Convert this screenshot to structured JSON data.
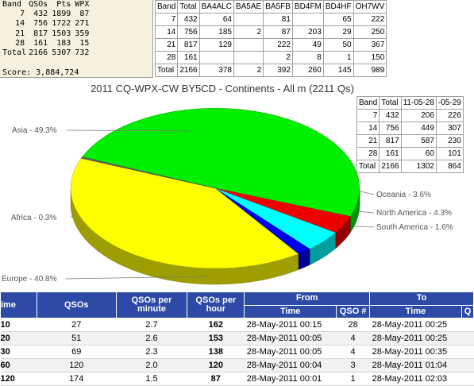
{
  "score_block": {
    "headers": [
      "Band",
      "QSOs",
      "Pts",
      "WPX"
    ],
    "rows": [
      [
        "7",
        "432",
        "1899",
        "87"
      ],
      [
        "14",
        "756",
        "1722",
        "271"
      ],
      [
        "21",
        "817",
        "1503",
        "359"
      ],
      [
        "28",
        "161",
        "183",
        "15"
      ],
      [
        "Total",
        "2166",
        "5307",
        "732"
      ]
    ],
    "score_label": "Score:",
    "score_value": "3,884,724"
  },
  "operators_table": {
    "headers": [
      "Band",
      "Total",
      "BA4ALC",
      "BA5AE",
      "BA5FB",
      "BD4FM",
      "BD4HF",
      "OH7WV"
    ],
    "rows": [
      [
        "7",
        "432",
        "64",
        "",
        "81",
        "",
        "65",
        "222"
      ],
      [
        "14",
        "756",
        "185",
        "2",
        "87",
        "203",
        "29",
        "250"
      ],
      [
        "21",
        "817",
        "129",
        "",
        "222",
        "49",
        "50",
        "367"
      ],
      [
        "28",
        "161",
        "",
        "",
        "2",
        "8",
        "1",
        "150"
      ],
      [
        "Total",
        "2166",
        "378",
        "2",
        "392",
        "260",
        "145",
        "989"
      ]
    ]
  },
  "chart_title": "2011 CQ-WPX-CW BY5CD - Continents - All m (2211 Qs)",
  "chart_data": {
    "type": "pie",
    "title": "2011 CQ-WPX-CW BY5CD - Continents - All m (2211 Qs)",
    "slices": [
      {
        "label": "Asia - 49.3%",
        "value": 49.3,
        "color": "#00ee00"
      },
      {
        "label": "Oceania - 3.6%",
        "value": 3.6,
        "color": "#ee0000"
      },
      {
        "label": "North America - 4.3%",
        "value": 4.3,
        "color": "#00ffff"
      },
      {
        "label": "South America - 1.6%",
        "value": 1.6,
        "color": "#0000ee"
      },
      {
        "label": "Europe - 40.8%",
        "value": 40.8,
        "color": "#ffff00"
      },
      {
        "label": "Africa - 0.3%",
        "value": 0.3,
        "color": "#666666"
      }
    ]
  },
  "continents_table": {
    "headers": [
      "Band",
      "Total",
      "11-05-28",
      "-05-29"
    ],
    "rows": [
      [
        "7",
        "432",
        "206",
        "226"
      ],
      [
        "14",
        "756",
        "449",
        "307"
      ],
      [
        "21",
        "817",
        "587",
        "230"
      ],
      [
        "28",
        "161",
        "60",
        "101"
      ],
      [
        "Total",
        "2166",
        "1302",
        "864"
      ]
    ]
  },
  "rate_table": {
    "headers": {
      "time": "ime",
      "qsos": "QSOs",
      "per_minute": "QSOs per minute",
      "per_hour": "QSOs per hour",
      "from": "From",
      "to": "To",
      "from_time": "Time",
      "from_qso": "QSO #",
      "to_time": "Time",
      "to_extra": "Q"
    },
    "rows": [
      [
        "10",
        "27",
        "2.7",
        "162",
        "28-May-2011 00:15",
        "28",
        "28-May-2011 00:25"
      ],
      [
        "20",
        "51",
        "2.6",
        "153",
        "28-May-2011 00:05",
        "4",
        "28-May-2011 00:25"
      ],
      [
        "30",
        "69",
        "2.3",
        "138",
        "28-May-2011 00:05",
        "4",
        "28-May-2011 00:35"
      ],
      [
        "60",
        "120",
        "2.0",
        "120",
        "28-May-2011 00:04",
        "3",
        "28-May-2011 01:04"
      ],
      [
        "120",
        "174",
        "1.5",
        "87",
        "28-May-2011 00:01",
        "1",
        "28-May-2011 02:03"
      ]
    ]
  },
  "colors": {
    "header_blue": "#2d4ba6",
    "score_bg": "#f6f1de"
  }
}
